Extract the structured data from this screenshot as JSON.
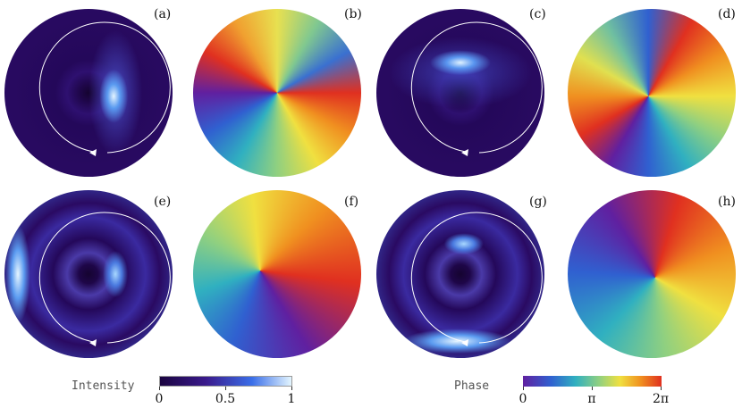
{
  "panels": [
    {
      "label": "(a)"
    },
    {
      "label": "(b)"
    },
    {
      "label": "(c)"
    },
    {
      "label": "(d)"
    },
    {
      "label": "(e)"
    },
    {
      "label": "(f)"
    },
    {
      "label": "(g)"
    },
    {
      "label": "(h)"
    }
  ],
  "colorbars": [
    {
      "title": "Intensity",
      "lim": [
        0,
        1
      ],
      "ticks": [
        0,
        0.5,
        1
      ]
    },
    {
      "title": "Phase",
      "lim": [
        0,
        6.28319
      ],
      "ticks": [
        0,
        {
          "value": 3.14159,
          "label": "π"
        },
        {
          "value": 6.28319,
          "label": "2π"
        }
      ]
    }
  ]
}
